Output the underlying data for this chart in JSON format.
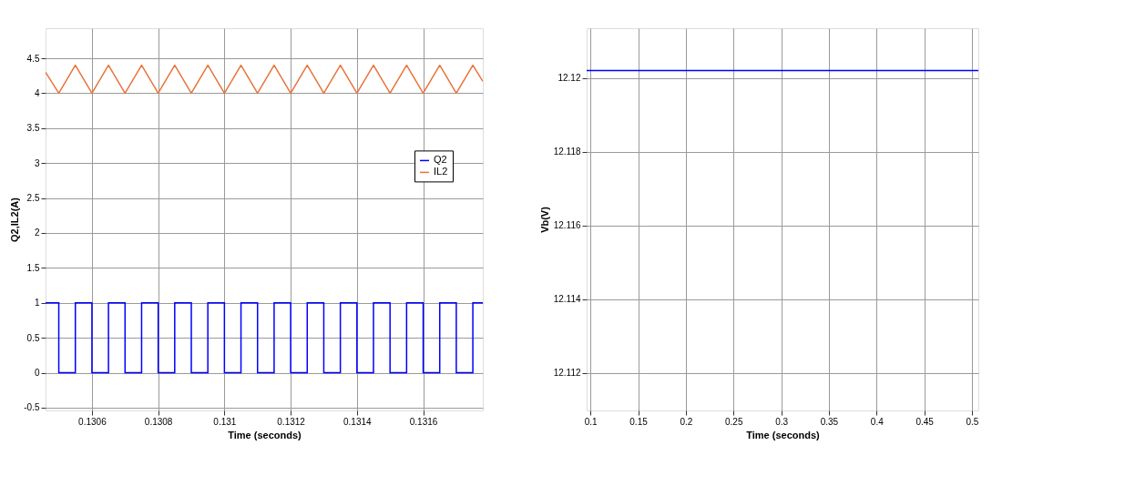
{
  "chart_data": [
    {
      "type": "line",
      "xlabel": "Time (seconds)",
      "ylabel": "Q2,IL2(A)",
      "xlim": [
        0.13046,
        0.13178
      ],
      "xticks": [
        0.1306,
        0.1308,
        0.131,
        0.1312,
        0.1314,
        0.1316
      ],
      "ylim": [
        -0.54,
        4.93
      ],
      "yticks": [
        -0.5,
        0,
        0.5,
        1,
        1.5,
        2,
        2.5,
        3,
        3.5,
        4,
        4.5
      ],
      "grid": true,
      "legend": "right",
      "series": [
        {
          "name": "Q2",
          "type": "step",
          "color": "#0000ff",
          "x": [
            0.13046,
            0.1305,
            0.13055,
            0.1306,
            0.13065,
            0.1307,
            0.13075,
            0.1308,
            0.13085,
            0.1309,
            0.13095,
            0.131,
            0.13105,
            0.1311,
            0.13115,
            0.1312,
            0.13125,
            0.1313,
            0.13135,
            0.1314,
            0.13145,
            0.1315,
            0.13155,
            0.1316,
            0.13165,
            0.1317,
            0.13175,
            0.13178
          ],
          "values": [
            1,
            0,
            1,
            0,
            1,
            0,
            1,
            0,
            1,
            0,
            1,
            0,
            1,
            0,
            1,
            0,
            1,
            0,
            1,
            0,
            1,
            0,
            1,
            0,
            1,
            0,
            1,
            1
          ]
        },
        {
          "name": "IL2",
          "type": "line",
          "color": "#e8743b",
          "x": [
            0.13046,
            0.1305,
            0.13055,
            0.1306,
            0.13065,
            0.1307,
            0.13075,
            0.1308,
            0.13085,
            0.1309,
            0.13095,
            0.131,
            0.13105,
            0.1311,
            0.13115,
            0.1312,
            0.13125,
            0.1313,
            0.13135,
            0.1314,
            0.13145,
            0.1315,
            0.13155,
            0.1316,
            0.13165,
            0.1317,
            0.13175,
            0.13178
          ],
          "values": [
            4.3,
            4,
            4.4,
            4,
            4.4,
            4,
            4.4,
            4,
            4.4,
            4,
            4.4,
            4,
            4.4,
            4,
            4.4,
            4,
            4.4,
            4,
            4.4,
            4,
            4.4,
            4,
            4.4,
            4,
            4.4,
            4,
            4.4,
            4.17
          ]
        }
      ]
    },
    {
      "type": "line",
      "xlabel": "Time (seconds)",
      "ylabel": "Vb(V)",
      "xlim": [
        0.096,
        0.5067
      ],
      "xticks": [
        0.1,
        0.15,
        0.2,
        0.25,
        0.3,
        0.35,
        0.4,
        0.45,
        0.5
      ],
      "ylim": [
        12.11098,
        12.12135
      ],
      "yticks": [
        12.112,
        12.114,
        12.116,
        12.118,
        12.12
      ],
      "grid": true,
      "series": [
        {
          "color": "#0000ff",
          "x": [
            0.096,
            0.2,
            0.3,
            0.4,
            0.5067
          ],
          "values": [
            12.1202,
            12.1202,
            12.1202,
            12.1202,
            12.1202
          ]
        }
      ]
    }
  ]
}
